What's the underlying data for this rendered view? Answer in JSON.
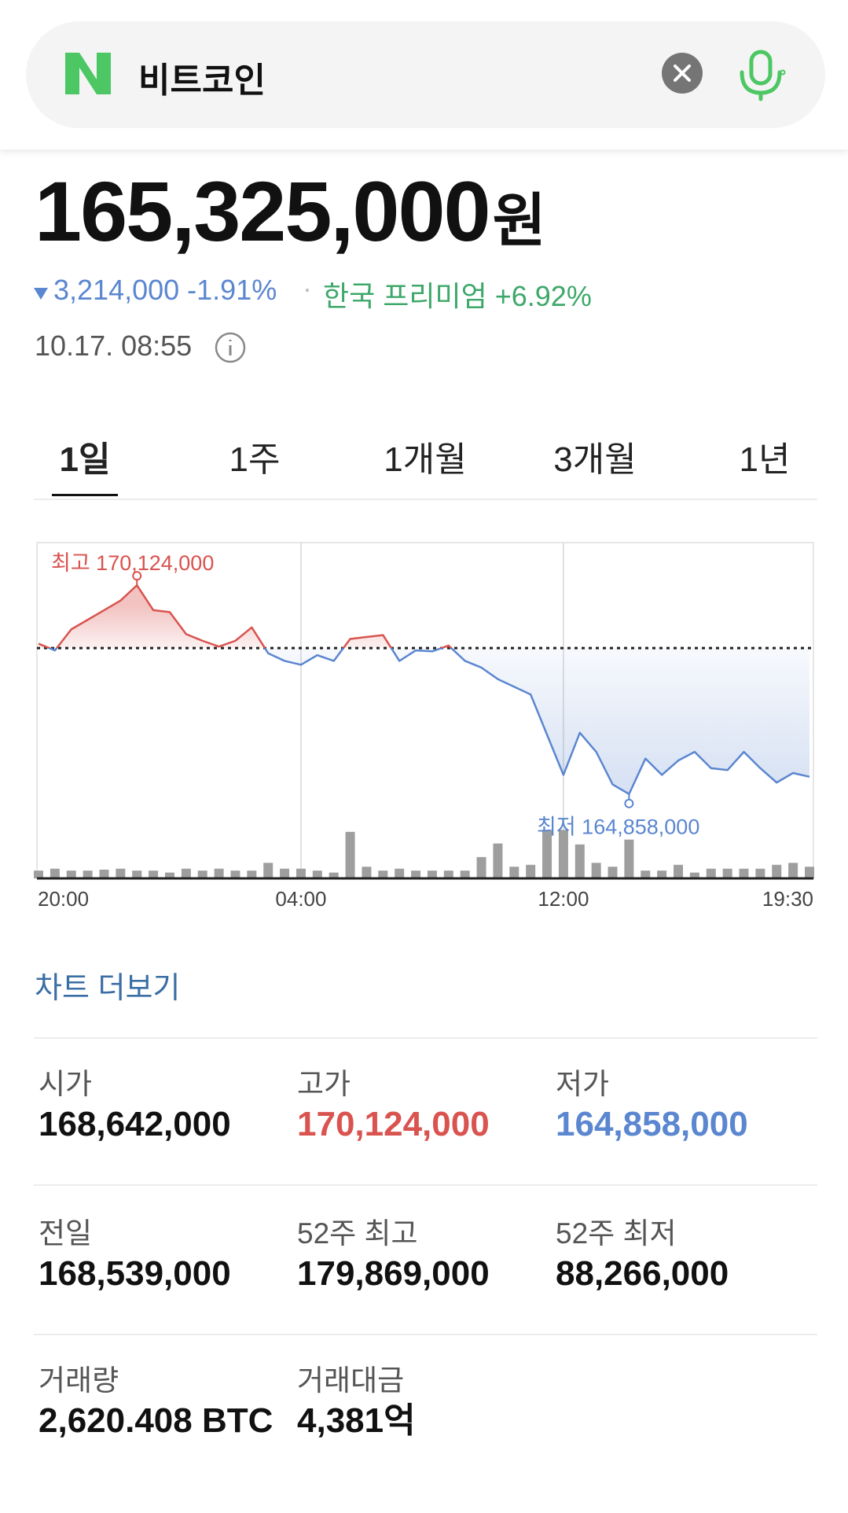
{
  "search": {
    "query": "비트코인"
  },
  "price": {
    "value": "165,325,000",
    "unit": "원"
  },
  "change": {
    "text": "3,214,000 -1.91%",
    "premium": "한국 프리미엄 +6.92%"
  },
  "timestamp": "10.17. 08:55",
  "tabs": [
    "1일",
    "1주",
    "1개월",
    "3개월",
    "1년"
  ],
  "active_tab": 0,
  "chart_data": {
    "type": "line",
    "categories": [
      "20:00",
      null,
      null,
      null,
      null,
      null,
      null,
      null,
      null,
      null,
      null,
      null,
      null,
      null,
      null,
      null,
      "04:00",
      null,
      null,
      null,
      null,
      null,
      null,
      null,
      null,
      null,
      null,
      null,
      null,
      null,
      null,
      null,
      "12:00",
      null,
      null,
      null,
      null,
      null,
      null,
      null,
      null,
      null,
      null,
      null,
      null,
      null,
      null,
      "19:30"
    ],
    "values": [
      168650000,
      168481000,
      169013000,
      169254000,
      169496000,
      169738000,
      170124000,
      169496000,
      169448000,
      168892000,
      168723000,
      168578000,
      168723000,
      169061000,
      168409000,
      168216000,
      168119000,
      168361000,
      168216000,
      168771000,
      168820000,
      168868000,
      168216000,
      168481000,
      168457000,
      168602000,
      168216000,
      168047000,
      167757000,
      167563000,
      167370000,
      166356000,
      165341000,
      166404000,
      165921000,
      165100000,
      164858000,
      165752000,
      165341000,
      165703000,
      165921000,
      165510000,
      165462000,
      165921000,
      165510000,
      165148000,
      165389000,
      165293000
    ],
    "volume": [
      8,
      10,
      8,
      8,
      9,
      10,
      8,
      8,
      6,
      10,
      8,
      10,
      8,
      8,
      16,
      10,
      10,
      8,
      6,
      48,
      12,
      8,
      10,
      8,
      8,
      8,
      8,
      22,
      36,
      12,
      14,
      50,
      50,
      35,
      16,
      12,
      40,
      8,
      8,
      14,
      6,
      10,
      10,
      10,
      10,
      14,
      16,
      12
    ],
    "ylim": [
      164000000,
      171200000
    ],
    "y2lim": [
      0,
      60
    ],
    "baseline": 168539000,
    "high_label": "최고 170,124,000",
    "low_label": "최저 164,858,000",
    "up_color": "#d9534f",
    "down_color": "#5b86d0",
    "volume_color": "#9e9e9e"
  },
  "more_link": "차트 더보기",
  "stats": [
    [
      {
        "label": "시가",
        "value": "168,642,000"
      },
      {
        "label": "고가",
        "value": "170,124,000",
        "color": "#d9534f"
      },
      {
        "label": "저가",
        "value": "164,858,000",
        "color": "#5b86d0"
      }
    ],
    [
      {
        "label": "전일",
        "value": "168,539,000"
      },
      {
        "label": "52주 최고",
        "value": "179,869,000"
      },
      {
        "label": "52주 최저",
        "value": "88,266,000"
      }
    ],
    [
      {
        "label": "거래량",
        "value": "2,620.408 BTC"
      },
      {
        "label": "거래대금",
        "value": "4,381억"
      }
    ]
  ]
}
